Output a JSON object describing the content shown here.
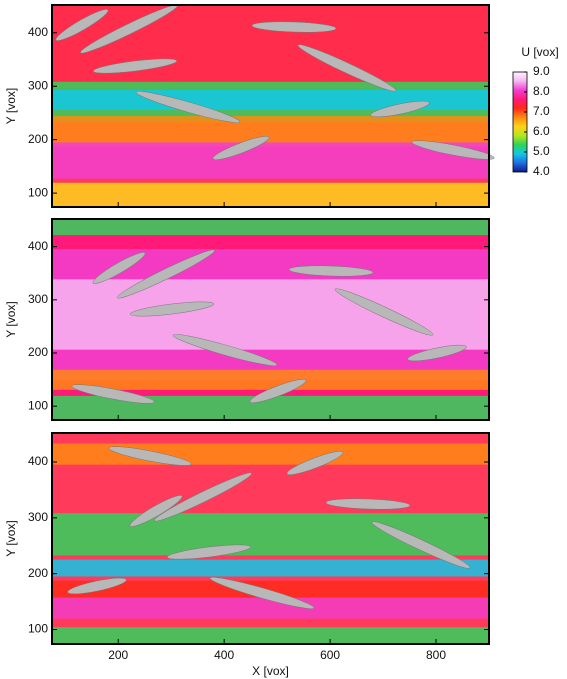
{
  "chart_data": [
    {
      "type": "contour",
      "ylabel": "Y [vox]",
      "xlim": [
        75,
        900
      ],
      "ylim": [
        74,
        452
      ],
      "xticks": [
        200,
        400,
        600,
        800
      ],
      "yticks": [
        100,
        200,
        300,
        400
      ],
      "colorbar_label": "U [vox]",
      "colorbar_lim": [
        4,
        9
      ],
      "colorbar_ticks": [
        {
          "value": 4,
          "label": "4.0"
        },
        {
          "value": 5,
          "label": "5.0"
        },
        {
          "value": 6,
          "label": "6.0"
        },
        {
          "value": 7,
          "label": "7.0"
        },
        {
          "value": 8,
          "label": "8.0"
        },
        {
          "value": 9,
          "label": "9.0"
        }
      ],
      "colormap": [
        "#101a8c",
        "#1f6fe0",
        "#12c8e6",
        "#2fd35a",
        "#b5e61d",
        "#ffd21a",
        "#ff8a12",
        "#ff2a1a",
        "#ff1a7a",
        "#f23fd0",
        "#f7b6f2",
        "#fdf4fd"
      ]
    },
    {
      "type": "contour",
      "ylabel": "Y [vox]",
      "xlim": [
        75,
        900
      ],
      "ylim": [
        74,
        452
      ],
      "xticks": [
        200,
        400,
        600,
        800
      ],
      "yticks": [
        100,
        200,
        300,
        400
      ]
    },
    {
      "type": "contour",
      "ylabel": "Y [vox]",
      "xlabel": "X [vox]",
      "xlim": [
        75,
        900
      ],
      "ylim": [
        74,
        452
      ],
      "xticks": [
        200,
        400,
        600,
        800
      ],
      "yticks": [
        100,
        200,
        300,
        400
      ]
    }
  ]
}
